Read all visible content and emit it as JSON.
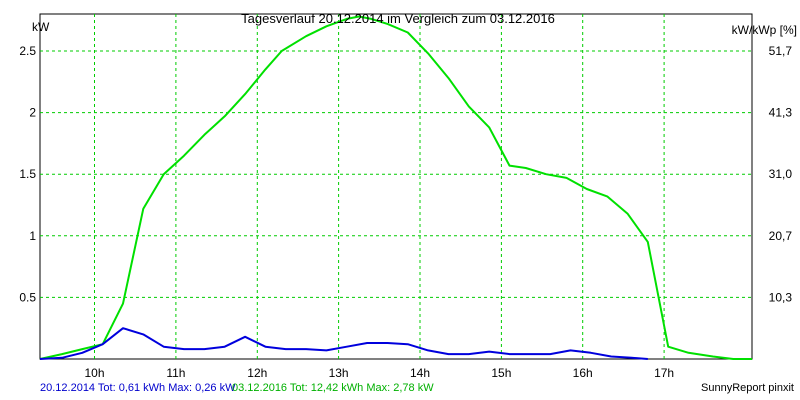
{
  "chart_data": {
    "type": "line",
    "title": "Tagesverlauf 20.12.2014 im Vergleich zum 03.12.2016",
    "ylabel_left": "kW",
    "ylabel_right": "kW/kWp [%]",
    "x_ticks": [
      {
        "t": 10,
        "label": "10h"
      },
      {
        "t": 11,
        "label": "11h"
      },
      {
        "t": 12,
        "label": "12h"
      },
      {
        "t": 13,
        "label": "13h"
      },
      {
        "t": 14,
        "label": "14h"
      },
      {
        "t": 15,
        "label": "15h"
      },
      {
        "t": 16,
        "label": "16h"
      },
      {
        "t": 17,
        "label": "17h"
      }
    ],
    "xlim": [
      9.33,
      18.08
    ],
    "ylim": [
      0,
      2.8
    ],
    "y_ticks": [
      {
        "v": 0.5,
        "label": "0.5"
      },
      {
        "v": 1,
        "label": "1"
      },
      {
        "v": 1.5,
        "label": "1.5"
      },
      {
        "v": 2,
        "label": "2"
      },
      {
        "v": 2.5,
        "label": "2.5"
      }
    ],
    "y_ticks_right": [
      {
        "v": 0.5,
        "label": "10,3"
      },
      {
        "v": 1,
        "label": "20,7"
      },
      {
        "v": 1.5,
        "label": "31,0"
      },
      {
        "v": 2,
        "label": "41,3"
      },
      {
        "v": 2.5,
        "label": "51,7"
      }
    ],
    "grid": true,
    "series": [
      {
        "color": "#00e000",
        "points": [
          [
            9.33,
            0.0
          ],
          [
            9.6,
            0.04
          ],
          [
            9.85,
            0.08
          ],
          [
            10.1,
            0.12
          ],
          [
            10.35,
            0.45
          ],
          [
            10.6,
            1.22
          ],
          [
            10.85,
            1.5
          ],
          [
            11.1,
            1.65
          ],
          [
            11.35,
            1.82
          ],
          [
            11.6,
            1.97
          ],
          [
            11.85,
            2.15
          ],
          [
            12.1,
            2.35
          ],
          [
            12.3,
            2.5
          ],
          [
            12.6,
            2.62
          ],
          [
            12.85,
            2.7
          ],
          [
            13.1,
            2.76
          ],
          [
            13.25,
            2.78
          ],
          [
            13.4,
            2.76
          ],
          [
            13.6,
            2.72
          ],
          [
            13.85,
            2.65
          ],
          [
            14.1,
            2.48
          ],
          [
            14.35,
            2.28
          ],
          [
            14.6,
            2.05
          ],
          [
            14.85,
            1.88
          ],
          [
            15.1,
            1.57
          ],
          [
            15.3,
            1.55
          ],
          [
            15.55,
            1.5
          ],
          [
            15.8,
            1.47
          ],
          [
            16.05,
            1.38
          ],
          [
            16.3,
            1.32
          ],
          [
            16.55,
            1.18
          ],
          [
            16.8,
            0.95
          ],
          [
            17.05,
            0.1
          ],
          [
            17.3,
            0.05
          ],
          [
            17.6,
            0.02
          ],
          [
            17.85,
            0.0
          ],
          [
            18.08,
            0.0
          ]
        ]
      },
      {
        "color": "#0000dd",
        "points": [
          [
            9.33,
            0.0
          ],
          [
            9.6,
            0.01
          ],
          [
            9.85,
            0.05
          ],
          [
            10.1,
            0.12
          ],
          [
            10.35,
            0.25
          ],
          [
            10.6,
            0.2
          ],
          [
            10.85,
            0.1
          ],
          [
            11.1,
            0.08
          ],
          [
            11.35,
            0.08
          ],
          [
            11.6,
            0.1
          ],
          [
            11.85,
            0.18
          ],
          [
            12.1,
            0.1
          ],
          [
            12.35,
            0.08
          ],
          [
            12.6,
            0.08
          ],
          [
            12.85,
            0.07
          ],
          [
            13.1,
            0.1
          ],
          [
            13.35,
            0.13
          ],
          [
            13.6,
            0.13
          ],
          [
            13.85,
            0.12
          ],
          [
            14.1,
            0.07
          ],
          [
            14.35,
            0.04
          ],
          [
            14.6,
            0.04
          ],
          [
            14.85,
            0.06
          ],
          [
            15.1,
            0.04
          ],
          [
            15.35,
            0.04
          ],
          [
            15.6,
            0.04
          ],
          [
            15.85,
            0.07
          ],
          [
            16.1,
            0.05
          ],
          [
            16.35,
            0.02
          ],
          [
            16.6,
            0.01
          ],
          [
            16.8,
            0.0
          ]
        ]
      }
    ],
    "legend": [
      {
        "text": "20.12.2014 Tot: 0,61 kWh Max: 0,26 kW",
        "color": "#0000cc"
      },
      {
        "text": "03.12.2016 Tot: 12,42 kWh Max: 2,78 kW",
        "color": "#00b000"
      }
    ],
    "credit": "SunnyReport pinxit"
  }
}
